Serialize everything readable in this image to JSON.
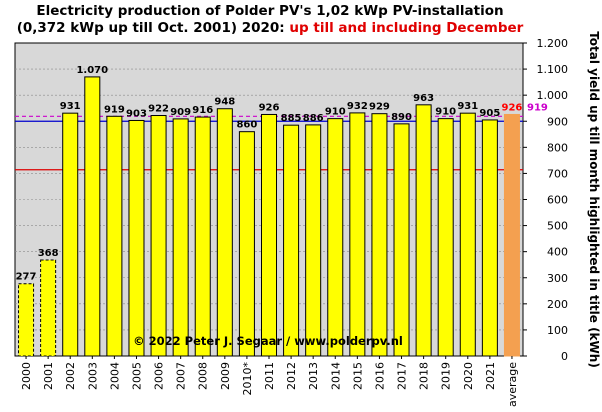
{
  "title": {
    "line1": "Electricity production of Polder PV's 1,02 kWp PV-installation",
    "line2_prefix": "(0,372 kWp up till Oct. 2001) 2020: ",
    "line2_highlight": "up till and including December"
  },
  "copyright": "© 2022 Peter J. Segaar / www.polderpv.nl",
  "chart_data": {
    "type": "bar",
    "categories": [
      "2000",
      "2001",
      "2002",
      "2003",
      "2004",
      "2005",
      "2006",
      "2007",
      "2008",
      "2009",
      "2010*",
      "2011",
      "2012",
      "2013",
      "2014",
      "2015",
      "2016",
      "2017",
      "2018",
      "2019",
      "2020",
      "2021",
      "average"
    ],
    "values": [
      277,
      368,
      931,
      1070,
      919,
      903,
      922,
      909,
      916,
      948,
      860,
      926,
      885,
      886,
      910,
      932,
      929,
      890,
      963,
      910,
      931,
      905,
      926
    ],
    "value_labels": [
      "277",
      "368",
      "931",
      "1.070",
      "919",
      "903",
      "922",
      "909",
      "916",
      "948",
      "860",
      "926",
      "885",
      "886",
      "910",
      "932",
      "929",
      "890",
      "963",
      "910",
      "931",
      "905",
      "926"
    ],
    "partial_years": [
      "2000",
      "2001"
    ],
    "ylabel": "Total yield up till month highlighted in title (kWh)",
    "ylim": [
      0,
      1200
    ],
    "yticks": [
      0,
      100,
      200,
      300,
      400,
      500,
      600,
      700,
      800,
      900,
      1000,
      1100,
      1200
    ],
    "ytick_labels": [
      "0",
      "100",
      "200",
      "300",
      "400",
      "500",
      "600",
      "700",
      "800",
      "900",
      "1.000",
      "1.100",
      "1.200"
    ],
    "reference_lines": [
      {
        "value": 919,
        "label": "919",
        "color": "#cc00cc",
        "style": "dashed"
      },
      {
        "value": 900,
        "color": "#0000cc",
        "style": "solid"
      },
      {
        "value": 714,
        "color": "#dd0000",
        "style": "solid"
      }
    ],
    "grid": true,
    "colors": {
      "bar": "#ffff00",
      "average_bar": "#f4a050",
      "average_label": "#ff0000",
      "plot_background": "#d8d8d8"
    }
  }
}
